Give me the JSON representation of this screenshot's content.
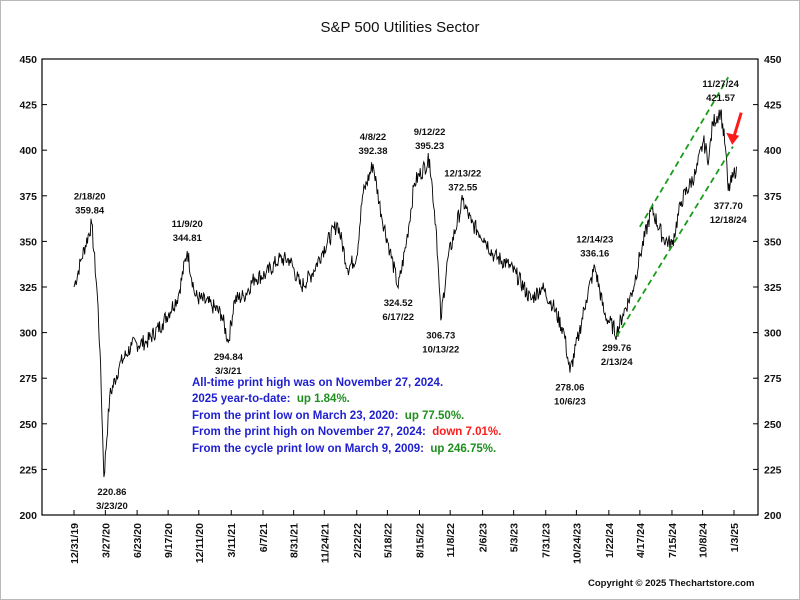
{
  "chart_data": {
    "type": "line",
    "title": "S&P 500 Utilities Sector",
    "ylim": [
      200,
      450
    ],
    "y_ticks": [
      200,
      225,
      250,
      275,
      300,
      325,
      350,
      375,
      400,
      425,
      450
    ],
    "x_ticks": [
      "12/31/19",
      "3/27/20",
      "6/23/20",
      "9/17/20",
      "12/11/20",
      "3/11/21",
      "6/7/21",
      "8/31/21",
      "11/24/21",
      "2/22/22",
      "5/18/22",
      "8/15/22",
      "11/8/22",
      "2/6/23",
      "5/3/23",
      "7/31/23",
      "10/24/23",
      "1/22/24",
      "4/17/24",
      "7/15/24",
      "10/8/24",
      "1/3/25"
    ],
    "series": [
      {
        "x": [
          "12/31/19",
          "1/20/20",
          "2/18/20",
          "3/5/20",
          "3/12/20",
          "3/23/20",
          "4/8/20",
          "5/5/20",
          "6/8/20",
          "7/20/20",
          "9/1/20",
          "10/15/20",
          "11/9/20",
          "12/1/20",
          "1/15/21",
          "2/12/21",
          "3/3/21",
          "3/20/21",
          "4/15/21",
          "5/15/21",
          "6/15/21",
          "7/20/21",
          "8/20/21",
          "9/20/21",
          "10/20/21",
          "11/20/21",
          "12/31/21",
          "1/28/22",
          "2/22/22",
          "3/10/22",
          "4/8/22",
          "5/1/22",
          "5/25/22",
          "6/17/22",
          "7/10/22",
          "8/1/22",
          "9/12/22",
          "10/1/22",
          "10/13/22",
          "11/1/22",
          "12/13/22",
          "1/6/23",
          "2/10/23",
          "3/10/23",
          "4/14/23",
          "5/10/23",
          "6/20/23",
          "7/20/23",
          "8/20/23",
          "9/20/23",
          "10/6/23",
          "11/1/23",
          "11/20/23",
          "12/14/23",
          "1/10/24",
          "2/13/24",
          "3/1/24",
          "3/28/24",
          "4/17/24",
          "5/20/24",
          "6/20/24",
          "7/15/24",
          "8/10/24",
          "9/20/24",
          "10/10/24",
          "10/25/24",
          "11/5/24",
          "11/27/24",
          "12/10/24",
          "12/18/24",
          "12/31/24",
          "1/10/25"
        ],
        "values": [
          325,
          340,
          359.84,
          320,
          290,
          220.86,
          265,
          282,
          293,
          295,
          305,
          320,
          344.81,
          320,
          315,
          310,
          294.84,
          318,
          320,
          330,
          332,
          340,
          340,
          325,
          332,
          345,
          360,
          335,
          342,
          375,
          392.38,
          365,
          345,
          324.52,
          350,
          382,
          395.23,
          355,
          306.73,
          340,
          372.55,
          360,
          352,
          342,
          338,
          332,
          318,
          325,
          315,
          300,
          278.06,
          300,
          318,
          336.16,
          310,
          299.76,
          310,
          323,
          342,
          368,
          352,
          348,
          372,
          388,
          405,
          395,
          415,
          421.57,
          402,
          377.7,
          385,
          391
        ]
      }
    ],
    "annotations": [
      {
        "date": "2/18/20",
        "value": "359.84"
      },
      {
        "date": "3/23/20",
        "value": "220.86"
      },
      {
        "date": "11/9/20",
        "value": "344.81"
      },
      {
        "date": "3/3/21",
        "value": "294.84"
      },
      {
        "date": "4/8/22",
        "value": "392.38"
      },
      {
        "date": "6/17/22",
        "value": "324.52"
      },
      {
        "date": "9/12/22",
        "value": "395.23"
      },
      {
        "date": "10/13/22",
        "value": "306.73"
      },
      {
        "date": "12/13/22",
        "value": "372.55"
      },
      {
        "date": "12/14/23",
        "value": "336.16"
      },
      {
        "date": "10/6/23",
        "value": "278.06"
      },
      {
        "date": "2/13/24",
        "value": "299.76"
      },
      {
        "date": "11/27/24",
        "value": "421.57"
      },
      {
        "date": "12/18/24",
        "value": "377.70"
      }
    ],
    "channel": {
      "upper": [
        [
          "4/17/24",
          358
        ],
        [
          "12/18/24",
          440
        ]
      ],
      "lower": [
        [
          "2/13/24",
          298
        ],
        [
          "12/31/24",
          402
        ]
      ]
    },
    "colors": {
      "line": "#000000",
      "channel": "#1a9c1a",
      "arrow": "#ff1a1a",
      "note_blue": "#1f1fd0",
      "note_green": "#1e8f1e",
      "note_red": "#ff1a1a"
    }
  },
  "notes": {
    "line1": "All-time print high was on November 27, 2024.",
    "line2_prefix": "2025 year-to-date:",
    "line2_value": "up 1.84%.",
    "line3_prefix": "From the print low on March 23, 2020:",
    "line3_value": "up 77.50%.",
    "line4_prefix": "From the print high on November 27, 2024:",
    "line4_value": "down 7.01%.",
    "line5_prefix": "From the cycle print low on March 9, 2009:",
    "line5_value": "up 246.75%."
  },
  "copyright": "Copyright © 2025 Thechartstore.com"
}
